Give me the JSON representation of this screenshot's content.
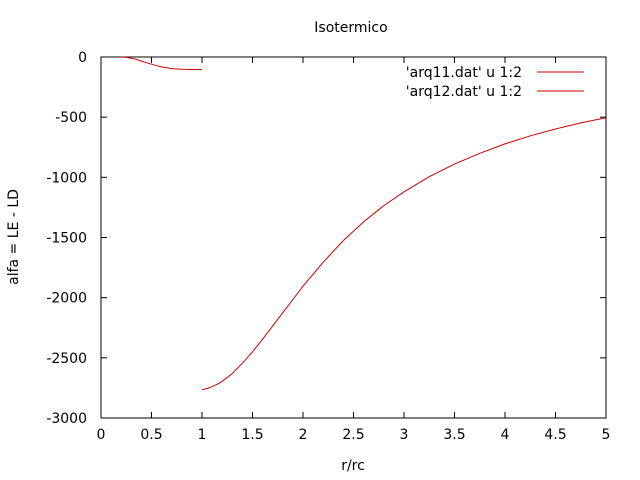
{
  "chart_data": {
    "type": "line",
    "title": "Isotermico",
    "xlabel": "r/rc",
    "ylabel": "alfa = LE - LD",
    "xlim": [
      0,
      5
    ],
    "ylim": [
      -3000,
      0
    ],
    "x_ticks": [
      "0",
      "0.5",
      "1",
      "1.5",
      "2",
      "2.5",
      "3",
      "3.5",
      "4",
      "4.5",
      "5"
    ],
    "y_ticks": [
      "0",
      "-500",
      "-1000",
      "-1500",
      "-2000",
      "-2500",
      "-3000"
    ],
    "grid": false,
    "legend_position": "top-right",
    "series": [
      {
        "name": "'arq11.dat' u 1:2",
        "color": "#cc0000",
        "x": [
          0.2,
          0.25,
          0.3,
          0.35,
          0.4,
          0.45,
          0.5,
          0.55,
          0.6,
          0.65,
          0.7,
          0.75,
          0.8,
          0.85,
          0.9,
          0.95,
          1.0
        ],
        "y": [
          0,
          -3,
          -10,
          -20,
          -33,
          -47,
          -60,
          -72,
          -82,
          -90,
          -96,
          -100,
          -102,
          -103,
          -104,
          -104,
          -104
        ]
      },
      {
        "name": "'arq12.dat' u 1:2",
        "color": "#cc0000",
        "x": [
          1.0,
          1.05,
          1.1,
          1.15,
          1.2,
          1.3,
          1.4,
          1.5,
          1.6,
          1.7,
          1.8,
          1.9,
          2.0,
          2.2,
          2.4,
          2.6,
          2.8,
          3.0,
          3.25,
          3.5,
          3.75,
          4.0,
          4.25,
          4.5,
          4.75,
          5.0
        ],
        "y": [
          -2765,
          -2755,
          -2740,
          -2720,
          -2695,
          -2630,
          -2545,
          -2450,
          -2345,
          -2235,
          -2125,
          -2015,
          -1905,
          -1705,
          -1525,
          -1370,
          -1235,
          -1120,
          -995,
          -890,
          -800,
          -722,
          -655,
          -598,
          -548,
          -505
        ]
      }
    ]
  }
}
